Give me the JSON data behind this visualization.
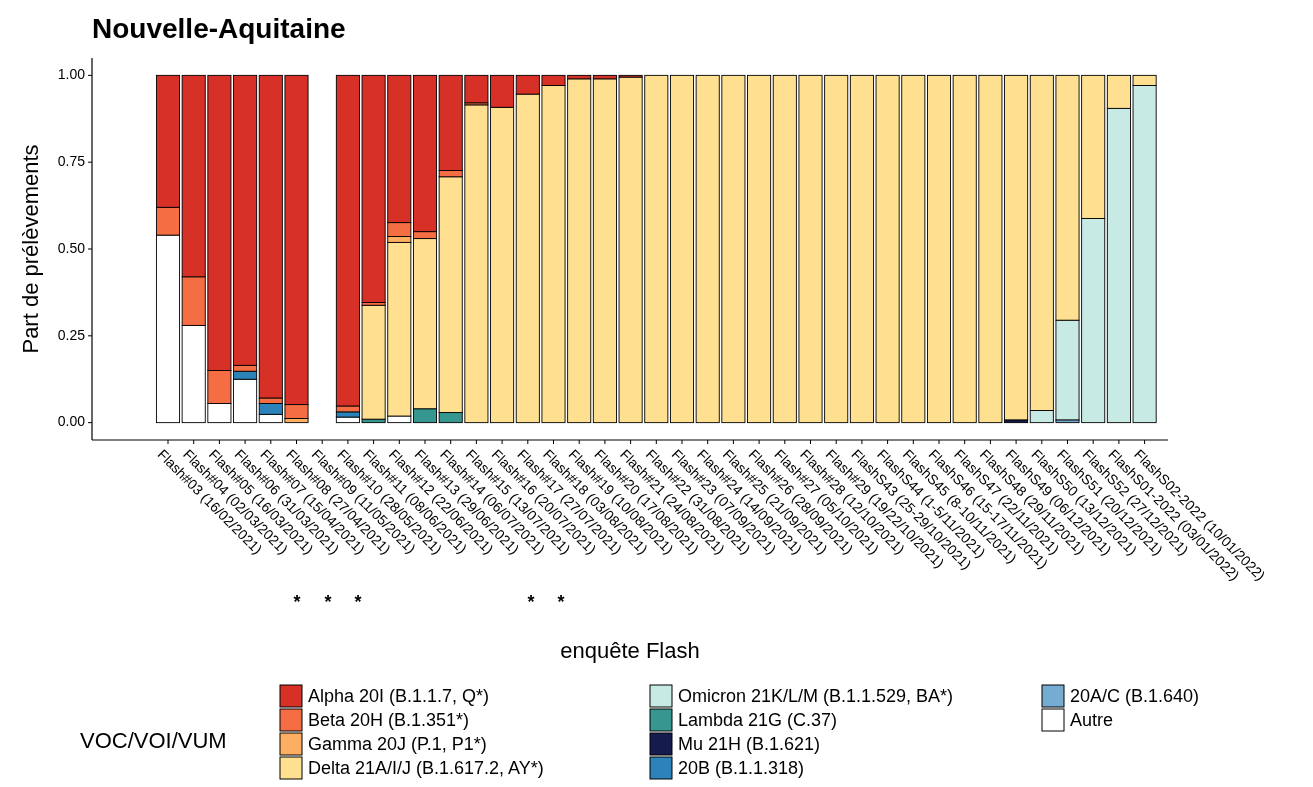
{
  "chart_data": {
    "type": "bar",
    "stacked": true,
    "title": "Nouvelle-Aquitaine",
    "xlabel": "enquête Flash",
    "ylabel": "Part de prélèvements",
    "legend_title": "VOC/VOI/VUM",
    "legend": "bottom",
    "categories": [
      "Flash#03 (16/02/2021)",
      "Flash#04 (02/03/2021)",
      "Flash#05 (16/03/2021)",
      "Flash#06 (31/03/2021)",
      "Flash#07 (15/04/2021)",
      "Flash#08 (27/04/2021)",
      "Flash#09 (11/05/2021)",
      "Flash#10 (28/05/2021)",
      "Flash#11 (08/06/2021)",
      "Flash#12 (22/06/2021)",
      "Flash#13 (29/06/2021)",
      "Flash#14 (06/07/2021)",
      "Flash#15 (13/07/2021)",
      "Flash#16 (20/07/2021)",
      "Flash#17 (27/07/2021)",
      "Flash#18 (03/08/2021)",
      "Flash#19 (10/08/2021)",
      "Flash#20 (17/08/2021)",
      "Flash#21 (24/08/2021)",
      "Flash#22 (31/08/2021)",
      "Flash#23 (07/09/2021)",
      "Flash#24 (14/09/2021)",
      "Flash#25 (21/09/2021)",
      "Flash#26 (28/09/2021)",
      "Flash#27 (05/10/2021)",
      "Flash#28 (12/10/2021)",
      "Flash#29 (19/22/10/2021)",
      "FlashS43 (25-29/10/2021)",
      "FlashS44 (1-5/11/2021)",
      "FlashS45 (8-10/11/2021)",
      "FlashS46 (15-17/11/2021)",
      "FlashS47 (22/11/2021)",
      "FlashS48 (29/11/2021)",
      "FlashS49 (06/12/2021)",
      "FlashS50 (13/12/2021)",
      "FlashS51 (20/12/2021)",
      "FlashS52 (27/12/2021)",
      "FlashS01-2022 (03/01/2022)",
      "FlashS02-2022 (10/01/2022)"
    ],
    "ylim": [
      -0.05,
      1.05
    ],
    "yticks": [
      {
        "value": 0,
        "label": "0.00"
      },
      {
        "value": 0.25,
        "label": "0.25"
      },
      {
        "value": 0.5,
        "label": "0.50"
      },
      {
        "value": 0.75,
        "label": "0.75"
      },
      {
        "value": 1,
        "label": "1.00"
      }
    ],
    "series": [
      {
        "name": "Autre",
        "color": "#ffffff",
        "values": [
          0.54,
          0.28,
          0.055,
          0.125,
          0.024,
          0,
          null,
          0.016,
          0,
          0.019,
          0,
          0,
          0,
          0,
          0,
          0,
          0,
          0,
          0,
          0,
          0,
          0,
          0,
          0,
          0,
          0,
          0,
          0,
          0,
          0,
          0,
          0,
          0,
          0,
          0,
          0,
          0,
          0,
          0
        ]
      },
      {
        "name": "20A/C (B.1.640)",
        "color": "#74add1",
        "values": [
          0,
          0,
          0,
          0,
          0,
          0,
          null,
          0,
          0,
          0,
          0,
          0,
          0,
          0,
          0,
          0,
          0,
          0,
          0,
          0,
          0,
          0,
          0,
          0,
          0,
          0,
          0,
          0,
          0,
          0,
          0,
          0,
          0,
          0,
          0,
          0.008,
          0,
          0,
          0
        ]
      },
      {
        "name": "20B (B.1.1.318)",
        "color": "#2b83ba",
        "values": [
          0,
          0,
          0,
          0.023,
          0.031,
          0,
          null,
          0.015,
          0,
          0,
          0,
          0,
          0,
          0,
          0,
          0,
          0,
          0,
          0,
          0,
          0,
          0,
          0,
          0,
          0,
          0,
          0,
          0,
          0,
          0,
          0,
          0,
          0,
          0,
          0,
          0,
          0,
          0,
          0
        ]
      },
      {
        "name": "Mu 21H (B.1.621)",
        "color": "#141b4d",
        "values": [
          0,
          0,
          0,
          0,
          0,
          0,
          null,
          0,
          0,
          0,
          0,
          0,
          null,
          0,
          0,
          0,
          0,
          0,
          0,
          0,
          0,
          0,
          0,
          0,
          0,
          0,
          0,
          0,
          0,
          0,
          0,
          0,
          0,
          0.008,
          0,
          0,
          null,
          0,
          0
        ]
      },
      {
        "name": "Lambda 21G (C.37)",
        "color": "#35978f",
        "values": [
          0,
          0,
          0,
          0,
          0,
          0,
          null,
          0,
          0.01,
          0,
          0.04,
          0.029,
          0,
          0,
          0,
          0,
          0,
          0,
          0,
          0,
          0,
          0,
          0,
          0,
          0,
          0,
          0,
          0,
          0,
          0,
          0,
          0,
          0,
          0,
          0,
          0,
          0,
          0,
          0
        ]
      },
      {
        "name": "Omicron 21K/L/M (B.1.1.529, BA*)",
        "color": "#c7eae5",
        "values": [
          0,
          0,
          0,
          0,
          0,
          0,
          null,
          0,
          0,
          0,
          0,
          0,
          0,
          0,
          0,
          0,
          0,
          0,
          0,
          0,
          0,
          0,
          0,
          0,
          0,
          0,
          0,
          0,
          0,
          0,
          0,
          0,
          0,
          0,
          0.035,
          0.287,
          0.588,
          0.905,
          0.971
        ]
      },
      {
        "name": "Delta 21A/I/J (B.1.617.2, AY*)",
        "color": "#fee090",
        "values": [
          0,
          0,
          0,
          0,
          0,
          0,
          null,
          0,
          0.328,
          0.5,
          0.49,
          0.679,
          0.915,
          0.908,
          0.946,
          0.971,
          0.99,
          0.99,
          0.995,
          1,
          1,
          1,
          1,
          1,
          1,
          1,
          1,
          1,
          1,
          1,
          1,
          1,
          1,
          0.992,
          0.965,
          0.705,
          0.412,
          0.095,
          0.029
        ]
      },
      {
        "name": "Gamma 20J (P.1, P1*)",
        "color": "#fdae61",
        "values": [
          0,
          0,
          0,
          0,
          0,
          0.012,
          null,
          0,
          0,
          0.017,
          0,
          0,
          0,
          0,
          0,
          0,
          0,
          0,
          0,
          0,
          0,
          0,
          0,
          0,
          0,
          0,
          0,
          0,
          0,
          0,
          0,
          0,
          0,
          0,
          0,
          0,
          0,
          0,
          0
        ]
      },
      {
        "name": "Beta 20H (B.1.351*)",
        "color": "#f46d43",
        "values": [
          0.08,
          0.14,
          0.095,
          0.017,
          0.016,
          0.04,
          null,
          0.017,
          0.008,
          0.04,
          0.02,
          0.018,
          0.006,
          0,
          0,
          0,
          0,
          0,
          0,
          0,
          0,
          0,
          0,
          0,
          0,
          0,
          0,
          0,
          0,
          0,
          0,
          0,
          0,
          0,
          0,
          0,
          0,
          0,
          0
        ]
      },
      {
        "name": "Alpha 20I (B.1.1.7, Q*)",
        "color": "#d73027",
        "values": [
          0.38,
          0.58,
          0.85,
          0.835,
          0.929,
          0.948,
          null,
          0.952,
          0.654,
          0.424,
          0.45,
          0.274,
          0.079,
          0.092,
          0.054,
          0.029,
          0.01,
          0.01,
          0.005,
          0,
          0,
          0,
          0,
          0,
          0,
          0,
          0,
          0,
          0,
          0,
          0,
          0,
          0,
          0,
          0,
          0,
          0,
          0,
          0
        ]
      }
    ],
    "annotations": [
      "*",
      "*",
      "*",
      "*",
      "*"
    ]
  }
}
